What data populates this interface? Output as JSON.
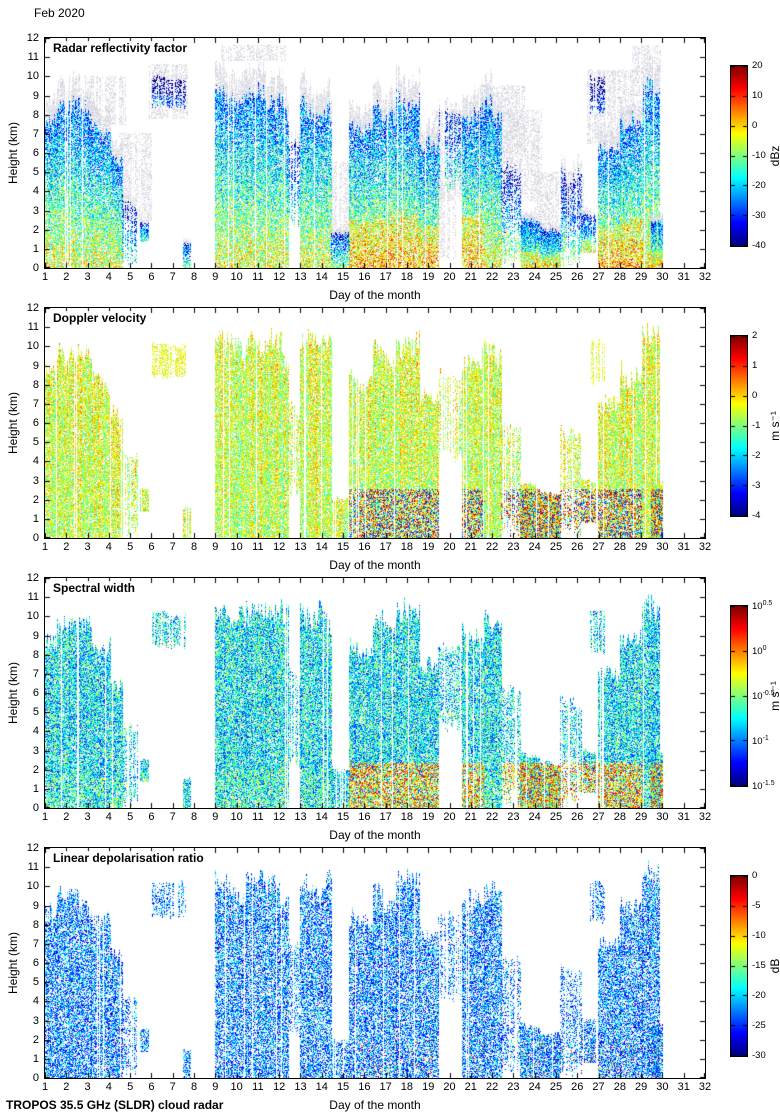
{
  "page": {
    "date_label": "Feb 2020",
    "footer": "TROPOS 35.5 GHz (SLDR) cloud radar"
  },
  "chart_data": [
    {
      "type": "heatmap",
      "field": "reflectivity",
      "title": "Radar reflectivity factor",
      "xlabel": "Day of the month",
      "ylabel": "Height (km)",
      "xlim": [
        1,
        32
      ],
      "ylim": [
        0,
        12
      ],
      "xticks": [
        1,
        2,
        3,
        4,
        5,
        6,
        7,
        8,
        9,
        10,
        11,
        12,
        13,
        14,
        15,
        16,
        17,
        18,
        19,
        20,
        21,
        22,
        23,
        24,
        25,
        26,
        27,
        28,
        29,
        30,
        31,
        32
      ],
      "yticks": [
        0,
        1,
        2,
        3,
        4,
        5,
        6,
        7,
        8,
        9,
        10,
        11,
        12
      ],
      "colorbar": {
        "label": "dBz",
        "min": -40,
        "max": 20,
        "ticks": [
          20,
          10,
          0,
          -10,
          -20,
          -30,
          -40
        ]
      }
    },
    {
      "type": "heatmap",
      "field": "doppler_velocity",
      "title": "Doppler velocity",
      "xlabel": "Day of the month",
      "ylabel": "Height (km)",
      "xlim": [
        1,
        32
      ],
      "ylim": [
        0,
        12
      ],
      "xticks": [
        1,
        2,
        3,
        4,
        5,
        6,
        7,
        8,
        9,
        10,
        11,
        12,
        13,
        14,
        15,
        16,
        17,
        18,
        19,
        20,
        21,
        22,
        23,
        24,
        25,
        26,
        27,
        28,
        29,
        30,
        31,
        32
      ],
      "yticks": [
        0,
        1,
        2,
        3,
        4,
        5,
        6,
        7,
        8,
        9,
        10,
        11,
        12
      ],
      "colorbar": {
        "label": "m s⁻¹",
        "min": -4,
        "max": 2,
        "ticks": [
          2,
          1,
          0,
          -1,
          -2,
          -3,
          -4
        ]
      }
    },
    {
      "type": "heatmap",
      "field": "spectral_width",
      "title": "Spectral width",
      "xlabel": "Day of the month",
      "ylabel": "Height (km)",
      "xlim": [
        1,
        32
      ],
      "ylim": [
        0,
        12
      ],
      "xticks": [
        1,
        2,
        3,
        4,
        5,
        6,
        7,
        8,
        9,
        10,
        11,
        12,
        13,
        14,
        15,
        16,
        17,
        18,
        19,
        20,
        21,
        22,
        23,
        24,
        25,
        26,
        27,
        28,
        29,
        30,
        31,
        32
      ],
      "yticks": [
        0,
        1,
        2,
        3,
        4,
        5,
        6,
        7,
        8,
        9,
        10,
        11,
        12
      ],
      "colorbar": {
        "label": "m s⁻¹",
        "min": -1.5,
        "max": 0.5,
        "log": true,
        "ticks": [
          "10^0.5",
          "10^0",
          "10^-0.5",
          "10^-1",
          "10^-1.5"
        ]
      }
    },
    {
      "type": "heatmap",
      "field": "linear_depolarisation_ratio",
      "title": "Linear depolarisation ratio",
      "xlabel": "Day of the month",
      "ylabel": "Height (km)",
      "xlim": [
        1,
        32
      ],
      "ylim": [
        0,
        12
      ],
      "xticks": [
        1,
        2,
        3,
        4,
        5,
        6,
        7,
        8,
        9,
        10,
        11,
        12,
        13,
        14,
        15,
        16,
        17,
        18,
        19,
        20,
        21,
        22,
        23,
        24,
        25,
        26,
        27,
        28,
        29,
        30,
        31,
        32
      ],
      "yticks": [
        0,
        1,
        2,
        3,
        4,
        5,
        6,
        7,
        8,
        9,
        10,
        11,
        12
      ],
      "colorbar": {
        "label": "dB",
        "min": -30,
        "max": 0,
        "ticks": [
          0,
          -5,
          -10,
          -15,
          -20,
          -25,
          -30
        ]
      }
    }
  ],
  "cloud_events": [
    {
      "day_start": 1.0,
      "day_end": 1.6,
      "height_base": 0,
      "height_top": 9.3,
      "kind": "deep",
      "warm": false
    },
    {
      "day_start": 1.6,
      "day_end": 2.15,
      "height_base": 0,
      "height_top": 10.2,
      "kind": "deep",
      "warm": false
    },
    {
      "day_start": 2.15,
      "day_end": 3.2,
      "height_base": 0,
      "height_top": 10.4,
      "kind": "deep",
      "warm": false
    },
    {
      "day_start": 3.2,
      "day_end": 4.1,
      "height_base": 0,
      "height_top": 9.0,
      "kind": "deep",
      "warm": false
    },
    {
      "day_start": 4.1,
      "day_end": 4.65,
      "height_base": 0,
      "height_top": 7.0,
      "kind": "deep",
      "warm": false
    },
    {
      "day_start": 4.65,
      "day_end": 5.35,
      "height_base": 0,
      "height_top": 4.5,
      "kind": "mid",
      "warm": false
    },
    {
      "day_start": 5.5,
      "day_end": 5.85,
      "height_base": 1.4,
      "height_top": 2.6,
      "kind": "low",
      "warm": false
    },
    {
      "day_start": 6.05,
      "day_end": 7.6,
      "height_base": 8.3,
      "height_top": 10.3,
      "kind": "high",
      "warm": false
    },
    {
      "day_start": 7.5,
      "day_end": 7.85,
      "height_base": 0,
      "height_top": 1.6,
      "kind": "low",
      "warm": false
    },
    {
      "day_start": 9.0,
      "day_end": 10.45,
      "height_base": 0,
      "height_top": 11.0,
      "kind": "deep",
      "warm": false
    },
    {
      "day_start": 10.45,
      "day_end": 11.35,
      "height_base": 0,
      "height_top": 11.2,
      "kind": "deep",
      "warm": false
    },
    {
      "day_start": 11.35,
      "day_end": 12.45,
      "height_base": 0,
      "height_top": 11.0,
      "kind": "deep",
      "warm": false
    },
    {
      "day_start": 12.45,
      "day_end": 13.0,
      "height_base": 2.0,
      "height_top": 7.5,
      "kind": "mid",
      "warm": false
    },
    {
      "day_start": 13.0,
      "day_end": 14.45,
      "height_base": 0,
      "height_top": 11.0,
      "kind": "deep",
      "warm": false
    },
    {
      "day_start": 14.45,
      "day_end": 15.3,
      "height_base": 0,
      "height_top": 2.2,
      "kind": "low",
      "warm": false
    },
    {
      "day_start": 15.3,
      "day_end": 16.45,
      "height_base": 0,
      "height_top": 9.0,
      "kind": "deep",
      "warm": true
    },
    {
      "day_start": 16.45,
      "day_end": 17.5,
      "height_base": 0,
      "height_top": 10.5,
      "kind": "deep",
      "warm": true
    },
    {
      "day_start": 17.5,
      "day_end": 18.6,
      "height_base": 0,
      "height_top": 11.0,
      "kind": "deep",
      "warm": true
    },
    {
      "day_start": 18.6,
      "day_end": 19.5,
      "height_base": 0,
      "height_top": 8.0,
      "kind": "deep",
      "warm": true
    },
    {
      "day_start": 19.5,
      "day_end": 20.6,
      "height_base": 4.0,
      "height_top": 9.0,
      "kind": "mid",
      "warm": false
    },
    {
      "day_start": 20.6,
      "day_end": 21.65,
      "height_base": 0,
      "height_top": 10.0,
      "kind": "deep",
      "warm": true
    },
    {
      "day_start": 21.65,
      "day_end": 22.45,
      "height_base": 0,
      "height_top": 10.6,
      "kind": "deep",
      "warm": false
    },
    {
      "day_start": 22.45,
      "day_end": 23.35,
      "height_base": 0,
      "height_top": 6.5,
      "kind": "mid",
      "warm": true
    },
    {
      "day_start": 23.35,
      "day_end": 24.25,
      "height_base": 0,
      "height_top": 3.0,
      "kind": "low_dense",
      "warm": true
    },
    {
      "day_start": 24.25,
      "day_end": 25.2,
      "height_base": 0,
      "height_top": 2.5,
      "kind": "low_dense",
      "warm": true
    },
    {
      "day_start": 25.2,
      "day_end": 26.2,
      "height_base": 0,
      "height_top": 6.0,
      "kind": "mid",
      "warm": true
    },
    {
      "day_start": 26.2,
      "day_end": 26.85,
      "height_base": 0.8,
      "height_top": 3.2,
      "kind": "low",
      "warm": true
    },
    {
      "day_start": 26.6,
      "day_end": 27.3,
      "height_base": 8.0,
      "height_top": 10.4,
      "kind": "high",
      "warm": false
    },
    {
      "day_start": 27.0,
      "day_end": 28.05,
      "height_base": 0,
      "height_top": 7.5,
      "kind": "deep",
      "warm": true
    },
    {
      "day_start": 28.05,
      "day_end": 29.05,
      "height_base": 0,
      "height_top": 9.5,
      "kind": "deep",
      "warm": true
    },
    {
      "day_start": 29.05,
      "day_end": 29.85,
      "height_base": 0,
      "height_top": 11.4,
      "kind": "deep",
      "warm": false
    },
    {
      "day_start": 29.5,
      "day_end": 30.0,
      "height_base": 0,
      "height_top": 3.0,
      "kind": "low_dense",
      "warm": true
    }
  ],
  "veil_regions": [
    {
      "day_start": 3.0,
      "day_end": 4.8,
      "height_base": 7.5,
      "height_top": 10.0
    },
    {
      "day_start": 4.5,
      "day_end": 6.0,
      "height_base": 2.5,
      "height_top": 7.0
    },
    {
      "day_start": 5.9,
      "day_end": 7.7,
      "height_base": 7.8,
      "height_top": 10.6
    },
    {
      "day_start": 9.3,
      "day_end": 12.3,
      "height_base": 10.8,
      "height_top": 11.6
    },
    {
      "day_start": 14.4,
      "day_end": 15.6,
      "height_base": 1.5,
      "height_top": 5.5
    },
    {
      "day_start": 18.8,
      "day_end": 20.3,
      "height_base": 0.5,
      "height_top": 4.5
    },
    {
      "day_start": 19.2,
      "day_end": 24.3,
      "height_base": 3.5,
      "height_top": 8.2
    },
    {
      "day_start": 21.5,
      "day_end": 23.5,
      "height_base": 6.0,
      "height_top": 9.5
    },
    {
      "day_start": 24.0,
      "day_end": 26.3,
      "height_base": 2.0,
      "height_top": 5.0
    },
    {
      "day_start": 26.5,
      "day_end": 28.6,
      "height_base": 6.5,
      "height_top": 10.3
    },
    {
      "day_start": 28.6,
      "day_end": 29.9,
      "height_base": 9.0,
      "height_top": 11.6
    }
  ]
}
